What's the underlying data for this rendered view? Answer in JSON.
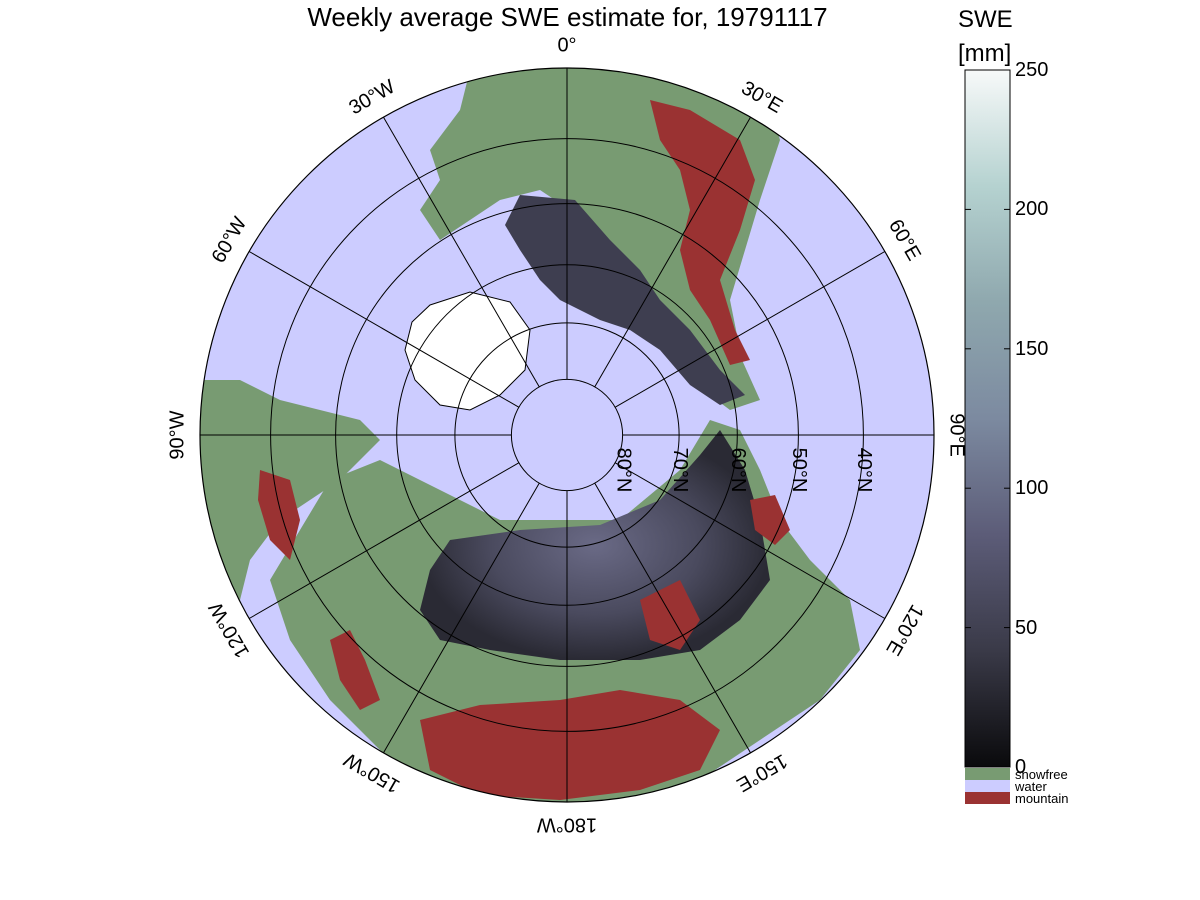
{
  "title": "Weekly average SWE estimate for, 19791117",
  "colorbar": {
    "title": "SWE",
    "unit": "[mm]",
    "range": [
      0,
      250
    ],
    "ticks": [
      "250",
      "200",
      "150",
      "100",
      "50",
      "0"
    ],
    "colors": [
      "#0a0a0c",
      "#3a3a48",
      "#5c5c78",
      "#7c8aa0",
      "#8fa8ae",
      "#b5d2d0",
      "#f7f9f9"
    ]
  },
  "categories": [
    {
      "label": "snowfree",
      "color": "#789b72"
    },
    {
      "label": "water",
      "color": "#ccccff"
    },
    {
      "label": "mountain",
      "color": "#9a3232"
    }
  ],
  "map": {
    "projection": "north polar stereographic",
    "longitude_labels": [
      "90°W",
      "60°W",
      "30°W",
      "0°",
      "30°E",
      "60°E",
      "90°E",
      "120°E",
      "150°E",
      "180°W",
      "150°W",
      "120°W"
    ],
    "latitude_labels": [
      "80°N",
      "70°N",
      "60°N",
      "50°N",
      "40°N"
    ],
    "latitudes": [
      80,
      70,
      60,
      50,
      40
    ],
    "outer_latitude": 30
  }
}
